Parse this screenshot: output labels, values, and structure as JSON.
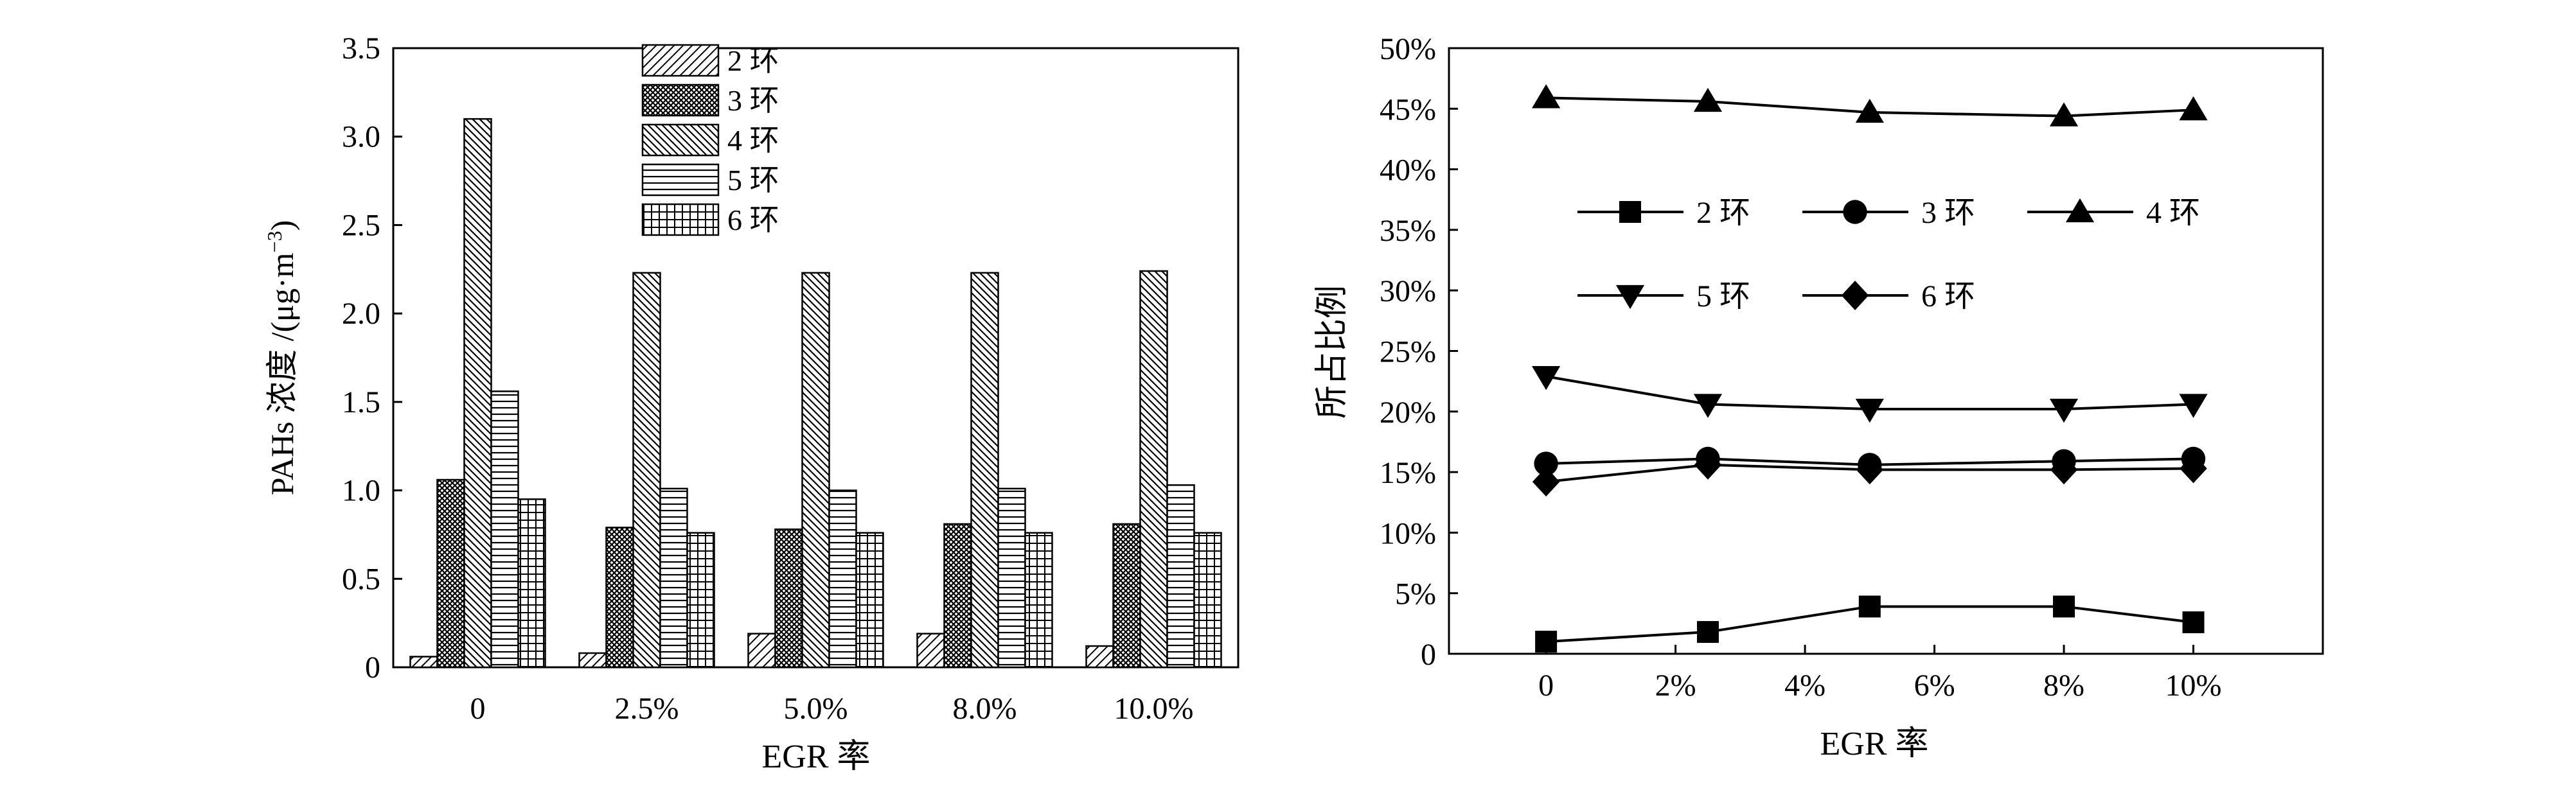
{
  "chart_data": [
    {
      "type": "bar",
      "categories": [
        "0",
        "2.5%",
        "5.0%",
        "8.0%",
        "10.0%"
      ],
      "ylabel": "PAHs 浓度 /(μg·m",
      "ylabel_sup": "−3",
      "ylabel_close": ")",
      "xlabel": "EGR 率",
      "ylim": [
        0,
        3.5
      ],
      "yticks": [
        "0",
        "0.5",
        "1.0",
        "1.5",
        "2.0",
        "2.5",
        "3.0",
        "3.5"
      ],
      "legend_position": "top-center",
      "series": [
        {
          "name": "2 环",
          "pattern": "diag-up",
          "values": [
            0.06,
            0.08,
            0.19,
            0.19,
            0.12
          ]
        },
        {
          "name": "3 环",
          "pattern": "crosshatch-dense",
          "values": [
            1.06,
            0.79,
            0.78,
            0.81,
            0.81
          ]
        },
        {
          "name": "4 环",
          "pattern": "diag-down",
          "values": [
            3.1,
            2.23,
            2.23,
            2.23,
            2.24
          ]
        },
        {
          "name": "5 环",
          "pattern": "horizontal",
          "values": [
            1.56,
            1.01,
            1.0,
            1.01,
            1.03
          ]
        },
        {
          "name": "6 环",
          "pattern": "grid",
          "values": [
            0.95,
            0.76,
            0.76,
            0.76,
            0.76
          ]
        }
      ]
    },
    {
      "type": "line",
      "x": [
        0,
        2.5,
        5,
        8,
        10
      ],
      "xlabel": "EGR 率",
      "ylabel": "所占比例",
      "xlim": [
        -1.5,
        12
      ],
      "ylim": [
        0,
        50
      ],
      "xticks": [
        {
          "v": 0,
          "label": "0"
        },
        {
          "v": 2,
          "label": "2%"
        },
        {
          "v": 4,
          "label": "4%"
        },
        {
          "v": 6,
          "label": "6%"
        },
        {
          "v": 8,
          "label": "8%"
        },
        {
          "v": 10,
          "label": "10%"
        }
      ],
      "yticks": [
        {
          "v": 0,
          "label": "0"
        },
        {
          "v": 5,
          "label": "5%"
        },
        {
          "v": 10,
          "label": "10%"
        },
        {
          "v": 15,
          "label": "15%"
        },
        {
          "v": 20,
          "label": "20%"
        },
        {
          "v": 25,
          "label": "25%"
        },
        {
          "v": 30,
          "label": "30%"
        },
        {
          "v": 35,
          "label": "35%"
        },
        {
          "v": 40,
          "label": "40%"
        },
        {
          "v": 45,
          "label": "45%"
        },
        {
          "v": 50,
          "label": "50%"
        }
      ],
      "legend_position": "upper-center",
      "series": [
        {
          "name": "2 环",
          "marker": "square",
          "values": [
            1.0,
            1.8,
            3.9,
            3.9,
            2.6
          ]
        },
        {
          "name": "3 环",
          "marker": "circle",
          "values": [
            15.7,
            16.1,
            15.6,
            15.9,
            16.1
          ]
        },
        {
          "name": "4 环",
          "marker": "triangle-up",
          "values": [
            45.9,
            45.6,
            44.7,
            44.4,
            44.9
          ]
        },
        {
          "name": "5 环",
          "marker": "triangle-down",
          "values": [
            22.9,
            20.6,
            20.2,
            20.2,
            20.6
          ]
        },
        {
          "name": "6 环",
          "marker": "diamond",
          "values": [
            14.2,
            15.6,
            15.2,
            15.2,
            15.3
          ]
        }
      ]
    }
  ]
}
